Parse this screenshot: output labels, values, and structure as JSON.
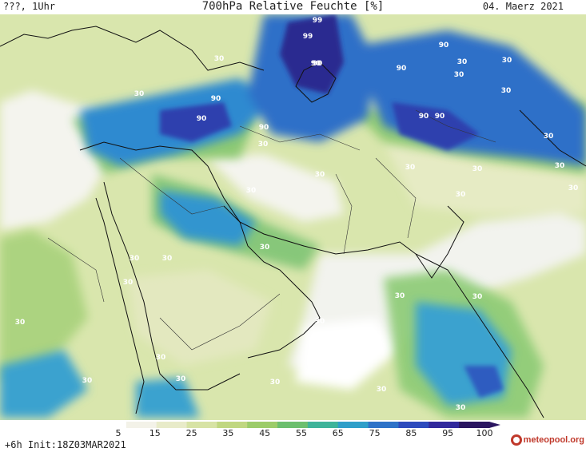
{
  "header": {
    "left": "???, 1Uhr",
    "title": "700hPa Relative Feuchte [%]",
    "date": "04. Maerz 2021"
  },
  "footer": {
    "init": "+6h Init:18Z03MAR2021",
    "brand": "meteopool.org"
  },
  "colorbar": {
    "ticks": [
      "5",
      "15",
      "25",
      "35",
      "45",
      "55",
      "65",
      "75",
      "85",
      "95",
      "100"
    ],
    "colors": [
      "#ffffff",
      "#f3f2e8",
      "#e8ebc9",
      "#d7e3a5",
      "#c0d781",
      "#9ccc6a",
      "#6cbf6e",
      "#3fb49a",
      "#2f9fc9",
      "#2e73c8",
      "#2d4bbd",
      "#31299c",
      "#2a1560"
    ]
  },
  "map_labels": [
    "99",
    "99",
    "90",
    "90",
    "90",
    "90",
    "90",
    "90",
    "90",
    "90",
    "90",
    "30",
    "30",
    "30",
    "30",
    "30",
    "30",
    "30",
    "30",
    "30",
    "30",
    "30",
    "30",
    "30",
    "30",
    "30",
    "30",
    "30",
    "30",
    "30",
    "30",
    "30",
    "30",
    "30",
    "30",
    "30",
    "30",
    "30",
    "30",
    "30"
  ]
}
